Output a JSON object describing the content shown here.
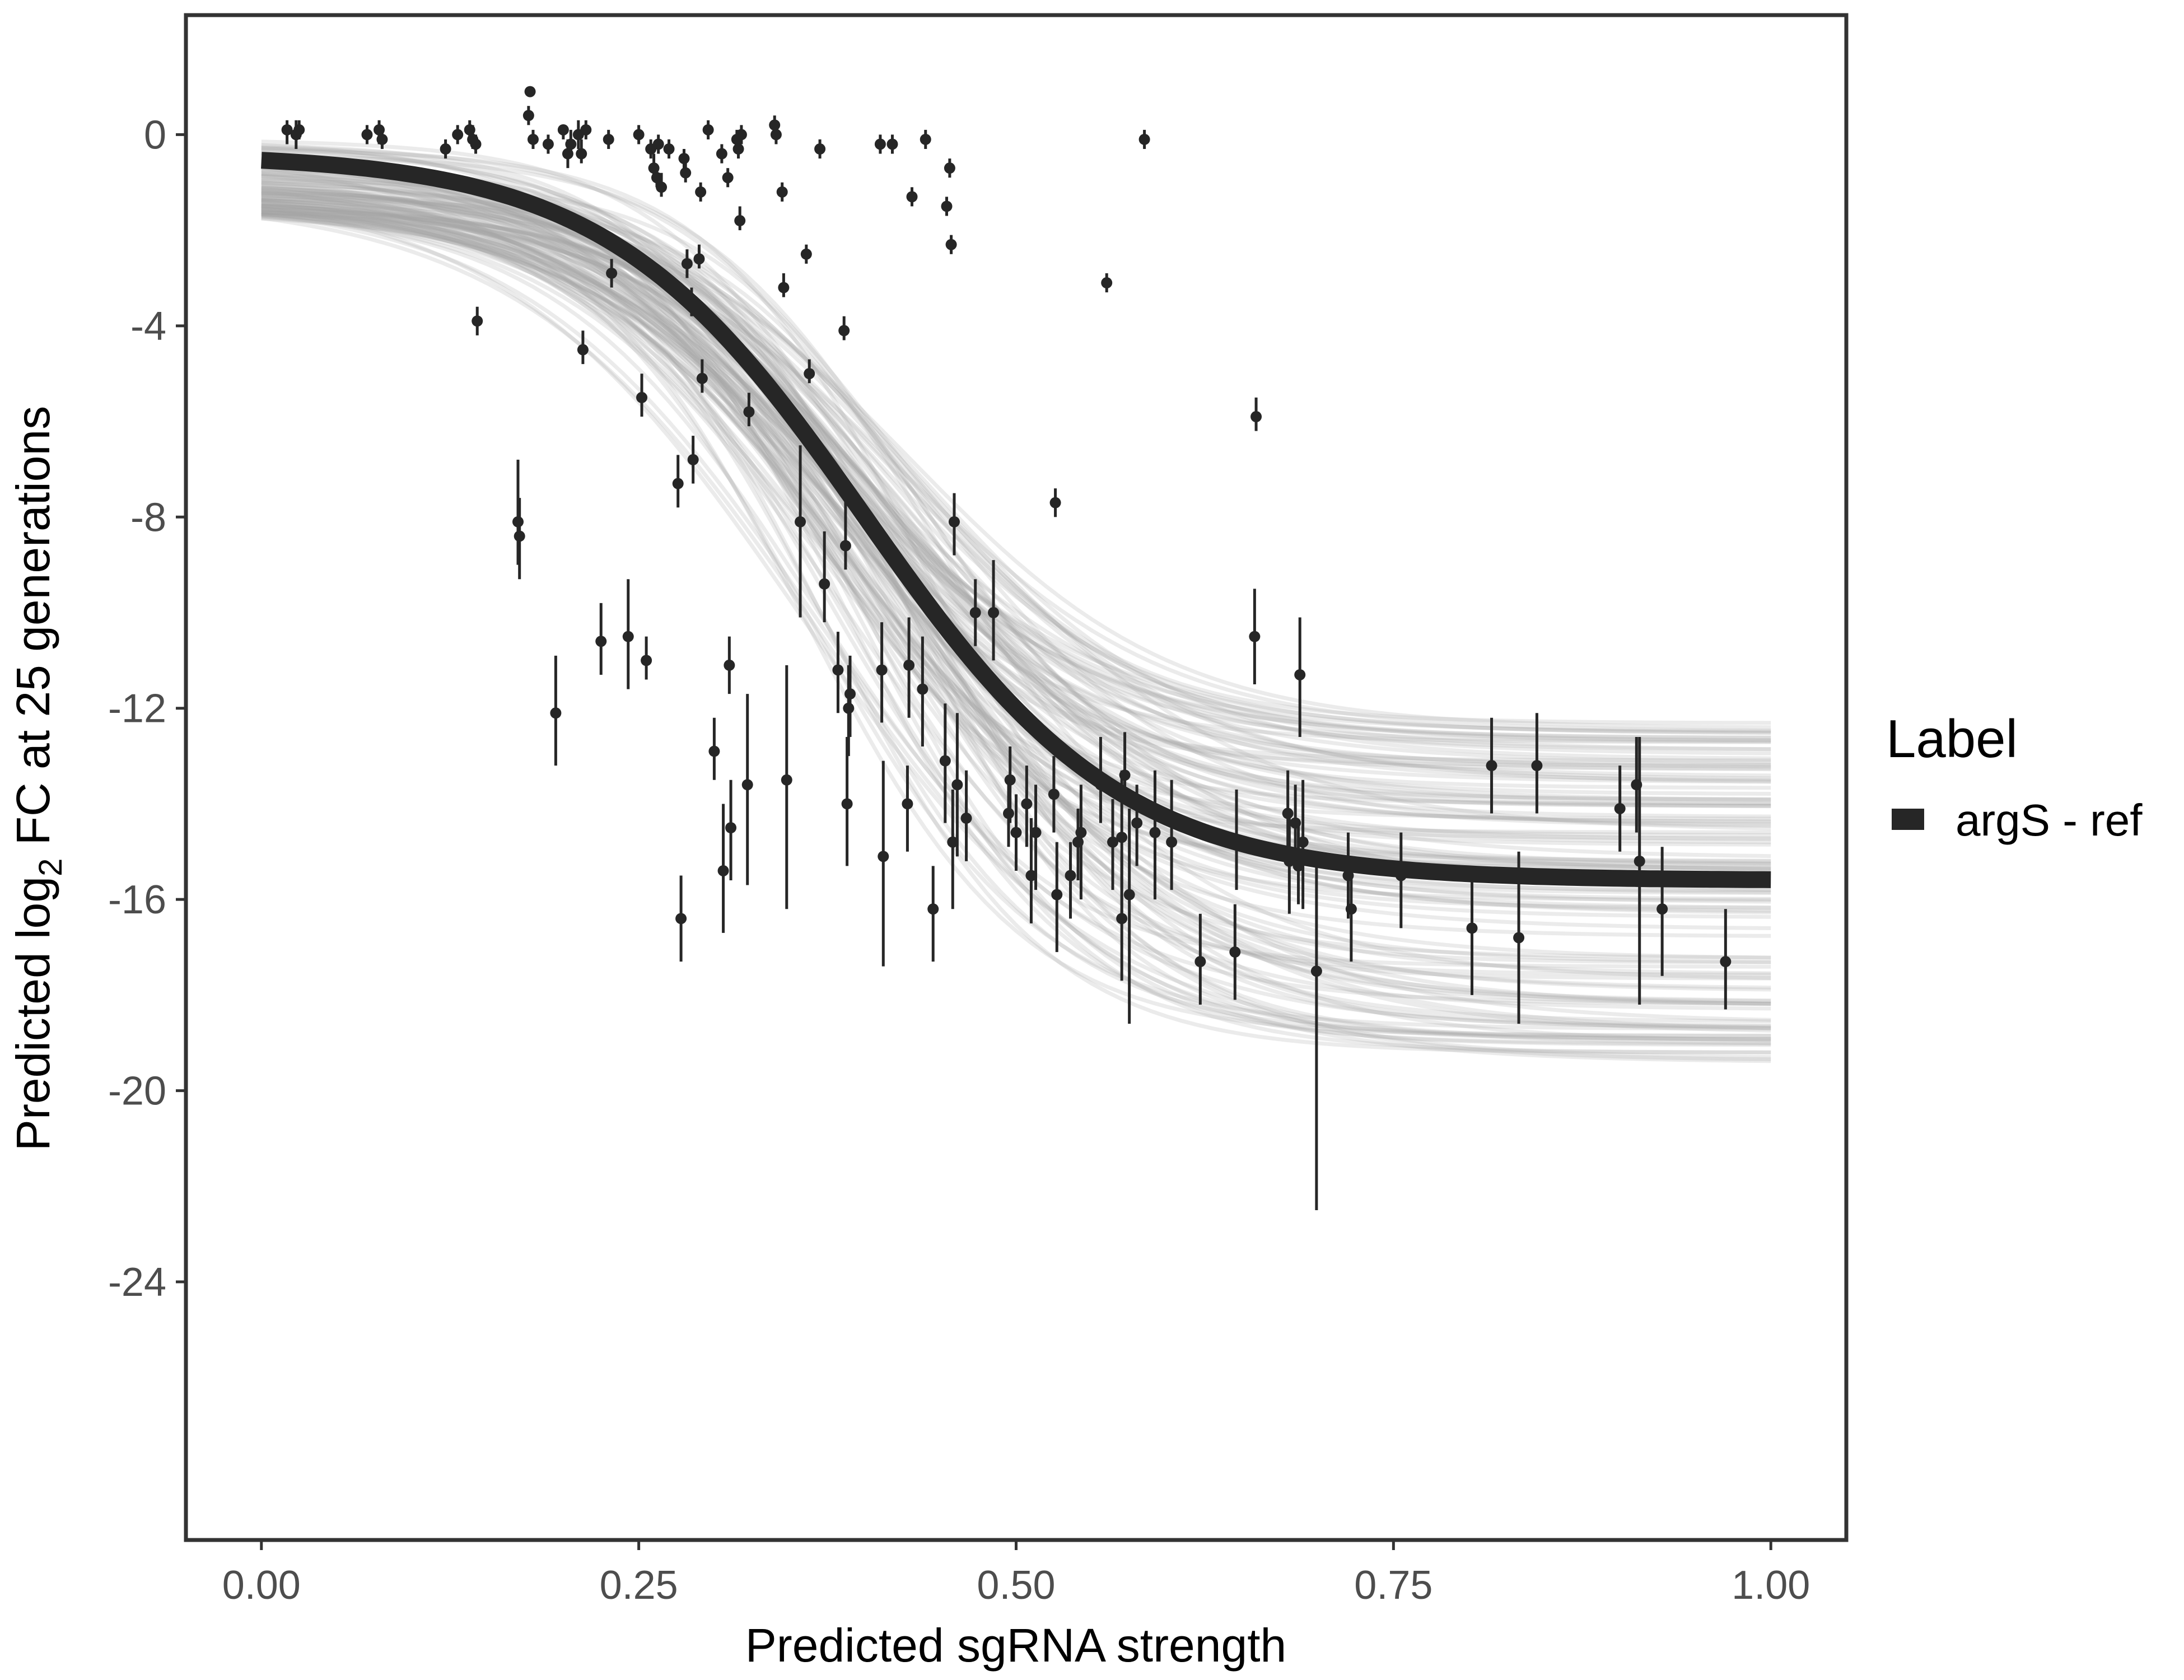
{
  "chart_data": {
    "type": "scatter",
    "xlabel": "Predicted sgRNA strength",
    "ylabel": {
      "prefix": "Predicted  log",
      "subscript": "2",
      "suffix": " FC at 25 generations"
    },
    "xlim": [
      -0.05,
      1.05
    ],
    "ylim": [
      -29.4,
      2.5
    ],
    "x_ticks": [
      0,
      0.25,
      0.5,
      0.75,
      1
    ],
    "x_tick_labels": [
      "0.00",
      "0.25",
      "0.50",
      "0.75",
      "1.00"
    ],
    "y_ticks": [
      0,
      -4,
      -8,
      -12,
      -16,
      -20,
      -24
    ],
    "y_tick_labels": [
      "0",
      "-4",
      "-8",
      "-12",
      "-16",
      "-20",
      "-24"
    ],
    "grid": false,
    "legend": {
      "title": "Label",
      "position": "right",
      "entries": [
        {
          "label": "argS - ref",
          "color": "#262626"
        }
      ]
    },
    "fit_curve": {
      "series_label": "argS - ref",
      "color": "#262626",
      "model": "logistic",
      "start_value": -0.4,
      "end_value": -15.6,
      "midpoint": 0.4,
      "scale": 0.085
    },
    "posterior_band": {
      "color": "#a6a6a6",
      "samples": 120,
      "low_end_values": [
        -0.1,
        -1.6
      ],
      "high_end_values": [
        -12.3,
        -19.6
      ]
    },
    "points": [
      {
        "x": 0.017,
        "y": 0.1,
        "lo": -0.2,
        "hi": 0.3
      },
      {
        "x": 0.023,
        "y": 0.0,
        "lo": -0.3,
        "hi": 0.3
      },
      {
        "x": 0.025,
        "y": 0.1,
        "lo": -0.1,
        "hi": 0.3
      },
      {
        "x": 0.07,
        "y": 0.0,
        "lo": -0.2,
        "hi": 0.2
      },
      {
        "x": 0.078,
        "y": 0.1,
        "lo": -0.2,
        "hi": 0.3
      },
      {
        "x": 0.08,
        "y": -0.1,
        "lo": -0.3,
        "hi": 0.1
      },
      {
        "x": 0.122,
        "y": -0.3,
        "lo": -0.5,
        "hi": -0.1
      },
      {
        "x": 0.13,
        "y": 0.0,
        "lo": -0.2,
        "hi": 0.2
      },
      {
        "x": 0.138,
        "y": 0.1,
        "lo": -0.1,
        "hi": 0.3
      },
      {
        "x": 0.14,
        "y": -0.1,
        "lo": -0.3,
        "hi": 0.2
      },
      {
        "x": 0.142,
        "y": -0.2,
        "lo": -0.4,
        "hi": 0.0
      },
      {
        "x": 0.143,
        "y": -3.9,
        "lo": -4.2,
        "hi": -3.6
      },
      {
        "x": 0.17,
        "y": -8.1,
        "lo": -9.0,
        "hi": -6.8
      },
      {
        "x": 0.171,
        "y": -8.4,
        "lo": -9.3,
        "hi": -7.6
      },
      {
        "x": 0.177,
        "y": 0.4,
        "lo": 0.2,
        "hi": 0.6
      },
      {
        "x": 0.178,
        "y": 0.9,
        "lo": 0.9,
        "hi": 1.0
      },
      {
        "x": 0.18,
        "y": -0.1,
        "lo": -0.3,
        "hi": 0.1
      },
      {
        "x": 0.19,
        "y": -0.2,
        "lo": -0.4,
        "hi": 0.0
      },
      {
        "x": 0.195,
        "y": -12.1,
        "lo": -13.2,
        "hi": -10.9
      },
      {
        "x": 0.2,
        "y": 0.1,
        "lo": -0.1,
        "hi": 0.2
      },
      {
        "x": 0.203,
        "y": -0.4,
        "lo": -0.7,
        "hi": -0.1
      },
      {
        "x": 0.205,
        "y": -0.2,
        "lo": -0.4,
        "hi": 0.1
      },
      {
        "x": 0.21,
        "y": 0.0,
        "lo": -0.3,
        "hi": 0.3
      },
      {
        "x": 0.212,
        "y": -0.4,
        "lo": -0.6,
        "hi": -0.1
      },
      {
        "x": 0.213,
        "y": -4.5,
        "lo": -4.8,
        "hi": -4.1
      },
      {
        "x": 0.215,
        "y": 0.1,
        "lo": -0.1,
        "hi": 0.3
      },
      {
        "x": 0.225,
        "y": -10.6,
        "lo": -11.3,
        "hi": -9.8
      },
      {
        "x": 0.23,
        "y": -0.1,
        "lo": -0.3,
        "hi": 0.1
      },
      {
        "x": 0.232,
        "y": -2.9,
        "lo": -3.2,
        "hi": -2.6
      },
      {
        "x": 0.243,
        "y": -10.5,
        "lo": -11.6,
        "hi": -9.3
      },
      {
        "x": 0.25,
        "y": 0.0,
        "lo": -0.2,
        "hi": 0.2
      },
      {
        "x": 0.252,
        "y": -5.5,
        "lo": -5.9,
        "hi": -5.0
      },
      {
        "x": 0.255,
        "y": -11.0,
        "lo": -11.4,
        "hi": -10.5
      },
      {
        "x": 0.258,
        "y": -0.3,
        "lo": -0.5,
        "hi": -0.1
      },
      {
        "x": 0.26,
        "y": -0.7,
        "lo": -0.9,
        "hi": -0.4
      },
      {
        "x": 0.262,
        "y": -0.9,
        "lo": -1.1,
        "hi": -0.7
      },
      {
        "x": 0.263,
        "y": -0.2,
        "lo": -0.4,
        "hi": 0.0
      },
      {
        "x": 0.265,
        "y": -1.1,
        "lo": -1.3,
        "hi": -0.8
      },
      {
        "x": 0.27,
        "y": -0.3,
        "lo": -0.5,
        "hi": -0.1
      },
      {
        "x": 0.276,
        "y": -7.3,
        "lo": -7.8,
        "hi": -6.7
      },
      {
        "x": 0.278,
        "y": -16.4,
        "lo": -17.3,
        "hi": -15.5
      },
      {
        "x": 0.28,
        "y": -0.5,
        "lo": -0.7,
        "hi": -0.3
      },
      {
        "x": 0.281,
        "y": -0.8,
        "lo": -1.0,
        "hi": -0.6
      },
      {
        "x": 0.282,
        "y": -2.7,
        "lo": -3.0,
        "hi": -2.4
      },
      {
        "x": 0.285,
        "y": -3.5,
        "lo": -3.8,
        "hi": -3.2
      },
      {
        "x": 0.286,
        "y": -6.8,
        "lo": -7.3,
        "hi": -6.3
      },
      {
        "x": 0.29,
        "y": -2.6,
        "lo": -2.8,
        "hi": -2.3
      },
      {
        "x": 0.291,
        "y": -1.2,
        "lo": -1.4,
        "hi": -1.0
      },
      {
        "x": 0.292,
        "y": -5.1,
        "lo": -5.4,
        "hi": -4.7
      },
      {
        "x": 0.296,
        "y": 0.1,
        "lo": -0.1,
        "hi": 0.3
      },
      {
        "x": 0.3,
        "y": -12.9,
        "lo": -13.5,
        "hi": -12.2
      },
      {
        "x": 0.305,
        "y": -0.4,
        "lo": -0.6,
        "hi": -0.2
      },
      {
        "x": 0.306,
        "y": -15.4,
        "lo": -16.7,
        "hi": -14.0
      },
      {
        "x": 0.309,
        "y": -0.9,
        "lo": -1.1,
        "hi": -0.7
      },
      {
        "x": 0.31,
        "y": -11.1,
        "lo": -11.7,
        "hi": -10.5
      },
      {
        "x": 0.311,
        "y": -14.5,
        "lo": -15.6,
        "hi": -13.5
      },
      {
        "x": 0.315,
        "y": -0.1,
        "lo": -0.3,
        "hi": 0.1
      },
      {
        "x": 0.316,
        "y": -0.3,
        "lo": -0.5,
        "hi": -0.1
      },
      {
        "x": 0.317,
        "y": -1.8,
        "lo": -2.0,
        "hi": -1.5
      },
      {
        "x": 0.318,
        "y": 0.0,
        "lo": -0.2,
        "hi": 0.2
      },
      {
        "x": 0.322,
        "y": -13.6,
        "lo": -15.7,
        "hi": -11.7
      },
      {
        "x": 0.323,
        "y": -5.8,
        "lo": -6.1,
        "hi": -5.4
      },
      {
        "x": 0.34,
        "y": 0.2,
        "lo": 0.0,
        "hi": 0.4
      },
      {
        "x": 0.341,
        "y": 0.0,
        "lo": -0.2,
        "hi": 0.2
      },
      {
        "x": 0.345,
        "y": -1.2,
        "lo": -1.4,
        "hi": -1.0
      },
      {
        "x": 0.346,
        "y": -3.2,
        "lo": -3.4,
        "hi": -2.9
      },
      {
        "x": 0.348,
        "y": -13.5,
        "lo": -16.2,
        "hi": -11.1
      },
      {
        "x": 0.357,
        "y": -8.1,
        "lo": -10.1,
        "hi": -6.5
      },
      {
        "x": 0.361,
        "y": -2.5,
        "lo": -2.7,
        "hi": -2.3
      },
      {
        "x": 0.363,
        "y": -5.0,
        "lo": -5.2,
        "hi": -4.7
      },
      {
        "x": 0.37,
        "y": -0.3,
        "lo": -0.5,
        "hi": -0.1
      },
      {
        "x": 0.373,
        "y": -9.4,
        "lo": -10.2,
        "hi": -8.3
      },
      {
        "x": 0.382,
        "y": -11.2,
        "lo": -12.1,
        "hi": -10.4
      },
      {
        "x": 0.386,
        "y": -4.1,
        "lo": -4.3,
        "hi": -3.8
      },
      {
        "x": 0.387,
        "y": -8.6,
        "lo": -9.1,
        "hi": -7.4
      },
      {
        "x": 0.388,
        "y": -14.0,
        "lo": -15.3,
        "hi": -12.6
      },
      {
        "x": 0.389,
        "y": -12.0,
        "lo": -13.0,
        "hi": -11.1
      },
      {
        "x": 0.39,
        "y": -11.7,
        "lo": -12.6,
        "hi": -10.9
      },
      {
        "x": 0.41,
        "y": -0.2,
        "lo": -0.4,
        "hi": 0.0
      },
      {
        "x": 0.411,
        "y": -11.2,
        "lo": -12.3,
        "hi": -10.2
      },
      {
        "x": 0.412,
        "y": -15.1,
        "lo": -17.4,
        "hi": -13.1
      },
      {
        "x": 0.418,
        "y": -0.2,
        "lo": -0.4,
        "hi": 0.0
      },
      {
        "x": 0.428,
        "y": -14.0,
        "lo": -15.0,
        "hi": -13.2
      },
      {
        "x": 0.429,
        "y": -11.1,
        "lo": -12.2,
        "hi": -10.1
      },
      {
        "x": 0.431,
        "y": -1.3,
        "lo": -1.5,
        "hi": -1.1
      },
      {
        "x": 0.438,
        "y": -11.6,
        "lo": -12.8,
        "hi": -10.5
      },
      {
        "x": 0.44,
        "y": -0.1,
        "lo": -0.3,
        "hi": 0.1
      },
      {
        "x": 0.445,
        "y": -16.2,
        "lo": -17.3,
        "hi": -15.3
      },
      {
        "x": 0.453,
        "y": -13.1,
        "lo": -14.4,
        "hi": -11.9
      },
      {
        "x": 0.454,
        "y": -1.5,
        "lo": -1.7,
        "hi": -1.3
      },
      {
        "x": 0.456,
        "y": -0.7,
        "lo": -0.9,
        "hi": -0.5
      },
      {
        "x": 0.457,
        "y": -2.3,
        "lo": -2.5,
        "hi": -2.1
      },
      {
        "x": 0.458,
        "y": -14.8,
        "lo": -16.2,
        "hi": -13.7
      },
      {
        "x": 0.459,
        "y": -8.1,
        "lo": -8.8,
        "hi": -7.5
      },
      {
        "x": 0.461,
        "y": -13.6,
        "lo": -15.1,
        "hi": -12.1
      },
      {
        "x": 0.467,
        "y": -14.3,
        "lo": -15.2,
        "hi": -13.3
      },
      {
        "x": 0.473,
        "y": -10.0,
        "lo": -10.7,
        "hi": -9.3
      },
      {
        "x": 0.485,
        "y": -10.0,
        "lo": -11.0,
        "hi": -8.9
      },
      {
        "x": 0.495,
        "y": -14.2,
        "lo": -14.9,
        "hi": -13.4
      },
      {
        "x": 0.496,
        "y": -13.5,
        "lo": -14.4,
        "hi": -12.8
      },
      {
        "x": 0.5,
        "y": -14.6,
        "lo": -15.4,
        "hi": -13.8
      },
      {
        "x": 0.507,
        "y": -14.0,
        "lo": -14.9,
        "hi": -13.2
      },
      {
        "x": 0.51,
        "y": -15.5,
        "lo": -16.5,
        "hi": -14.3
      },
      {
        "x": 0.513,
        "y": -14.6,
        "lo": -15.8,
        "hi": -13.6
      },
      {
        "x": 0.525,
        "y": -13.8,
        "lo": -14.6,
        "hi": -13.0
      },
      {
        "x": 0.526,
        "y": -7.7,
        "lo": -8.0,
        "hi": -7.4
      },
      {
        "x": 0.527,
        "y": -15.9,
        "lo": -17.1,
        "hi": -14.8
      },
      {
        "x": 0.536,
        "y": -15.5,
        "lo": -16.4,
        "hi": -14.8
      },
      {
        "x": 0.541,
        "y": -14.8,
        "lo": -15.6,
        "hi": -14.1
      },
      {
        "x": 0.543,
        "y": -14.6,
        "lo": -16.0,
        "hi": -13.6
      },
      {
        "x": 0.556,
        "y": -13.6,
        "lo": -14.4,
        "hi": -12.6
      },
      {
        "x": 0.56,
        "y": -3.1,
        "lo": -3.3,
        "hi": -2.9
      },
      {
        "x": 0.564,
        "y": -14.8,
        "lo": -15.8,
        "hi": -13.9
      },
      {
        "x": 0.57,
        "y": -14.7,
        "lo": -16.5,
        "hi": -13.3
      },
      {
        "x": 0.57,
        "y": -16.4,
        "lo": -17.7,
        "hi": -15.1
      },
      {
        "x": 0.572,
        "y": -13.4,
        "lo": -14.0,
        "hi": -12.5
      },
      {
        "x": 0.575,
        "y": -15.9,
        "lo": -18.6,
        "hi": -14.1
      },
      {
        "x": 0.58,
        "y": -14.4,
        "lo": -15.3,
        "hi": -13.6
      },
      {
        "x": 0.585,
        "y": -0.1,
        "lo": -0.3,
        "hi": 0.1
      },
      {
        "x": 0.592,
        "y": -14.6,
        "lo": -16.0,
        "hi": -13.3
      },
      {
        "x": 0.603,
        "y": -14.8,
        "lo": -15.8,
        "hi": -13.5
      },
      {
        "x": 0.622,
        "y": -17.3,
        "lo": -18.2,
        "hi": -16.3
      },
      {
        "x": 0.645,
        "y": -17.1,
        "lo": -18.1,
        "hi": -16.1
      },
      {
        "x": 0.646,
        "y": -14.8,
        "lo": -15.8,
        "hi": -13.7
      },
      {
        "x": 0.658,
        "y": -10.5,
        "lo": -11.5,
        "hi": -9.5
      },
      {
        "x": 0.659,
        "y": -5.9,
        "lo": -6.2,
        "hi": -5.5
      },
      {
        "x": 0.68,
        "y": -14.2,
        "lo": -14.9,
        "hi": -13.3
      },
      {
        "x": 0.681,
        "y": -15.2,
        "lo": -16.3,
        "hi": -14.1
      },
      {
        "x": 0.685,
        "y": -14.4,
        "lo": -15.2,
        "hi": -13.6
      },
      {
        "x": 0.687,
        "y": -15.3,
        "lo": -16.1,
        "hi": -14.4
      },
      {
        "x": 0.688,
        "y": -11.3,
        "lo": -12.6,
        "hi": -10.1
      },
      {
        "x": 0.69,
        "y": -14.8,
        "lo": -16.2,
        "hi": -13.5
      },
      {
        "x": 0.699,
        "y": -17.5,
        "lo": -22.5,
        "hi": -15.2
      },
      {
        "x": 0.72,
        "y": -15.5,
        "lo": -16.4,
        "hi": -14.6
      },
      {
        "x": 0.722,
        "y": -16.2,
        "lo": -17.3,
        "hi": -15.1
      },
      {
        "x": 0.755,
        "y": -15.5,
        "lo": -16.6,
        "hi": -14.6
      },
      {
        "x": 0.802,
        "y": -16.6,
        "lo": -18.0,
        "hi": -15.3
      },
      {
        "x": 0.815,
        "y": -13.2,
        "lo": -14.2,
        "hi": -12.2
      },
      {
        "x": 0.833,
        "y": -16.8,
        "lo": -18.6,
        "hi": -15.0
      },
      {
        "x": 0.845,
        "y": -13.2,
        "lo": -14.2,
        "hi": -12.1
      },
      {
        "x": 0.9,
        "y": -14.1,
        "lo": -15.0,
        "hi": -13.2
      },
      {
        "x": 0.911,
        "y": -13.6,
        "lo": -14.6,
        "hi": -12.6
      },
      {
        "x": 0.913,
        "y": -15.2,
        "lo": -18.2,
        "hi": -12.6
      },
      {
        "x": 0.928,
        "y": -16.2,
        "lo": -17.6,
        "hi": -14.9
      },
      {
        "x": 0.97,
        "y": -17.3,
        "lo": -18.3,
        "hi": -16.2
      }
    ]
  }
}
